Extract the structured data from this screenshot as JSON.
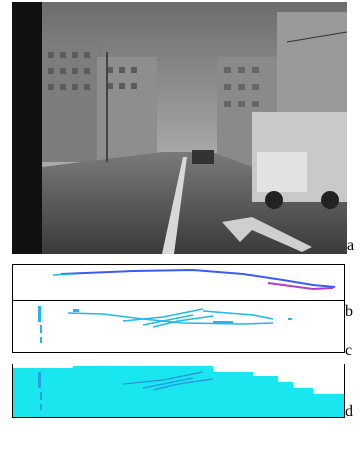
{
  "panels": [
    {
      "id": "a",
      "label": "a",
      "content": "street-scene-photo"
    },
    {
      "id": "b",
      "label": "b",
      "content": "projected-lane-markings-strip"
    },
    {
      "id": "c",
      "label": "c",
      "content": "detected-road-points-strip"
    },
    {
      "id": "d",
      "label": "d",
      "content": "filled-road-region-strip"
    }
  ],
  "colors": {
    "frame": "#000000",
    "marking_blue": "#3a5cf5",
    "marking_magenta": "#b33cc9",
    "points_cyan": "#22b8e8",
    "region_cyan": "#19e6ee"
  }
}
